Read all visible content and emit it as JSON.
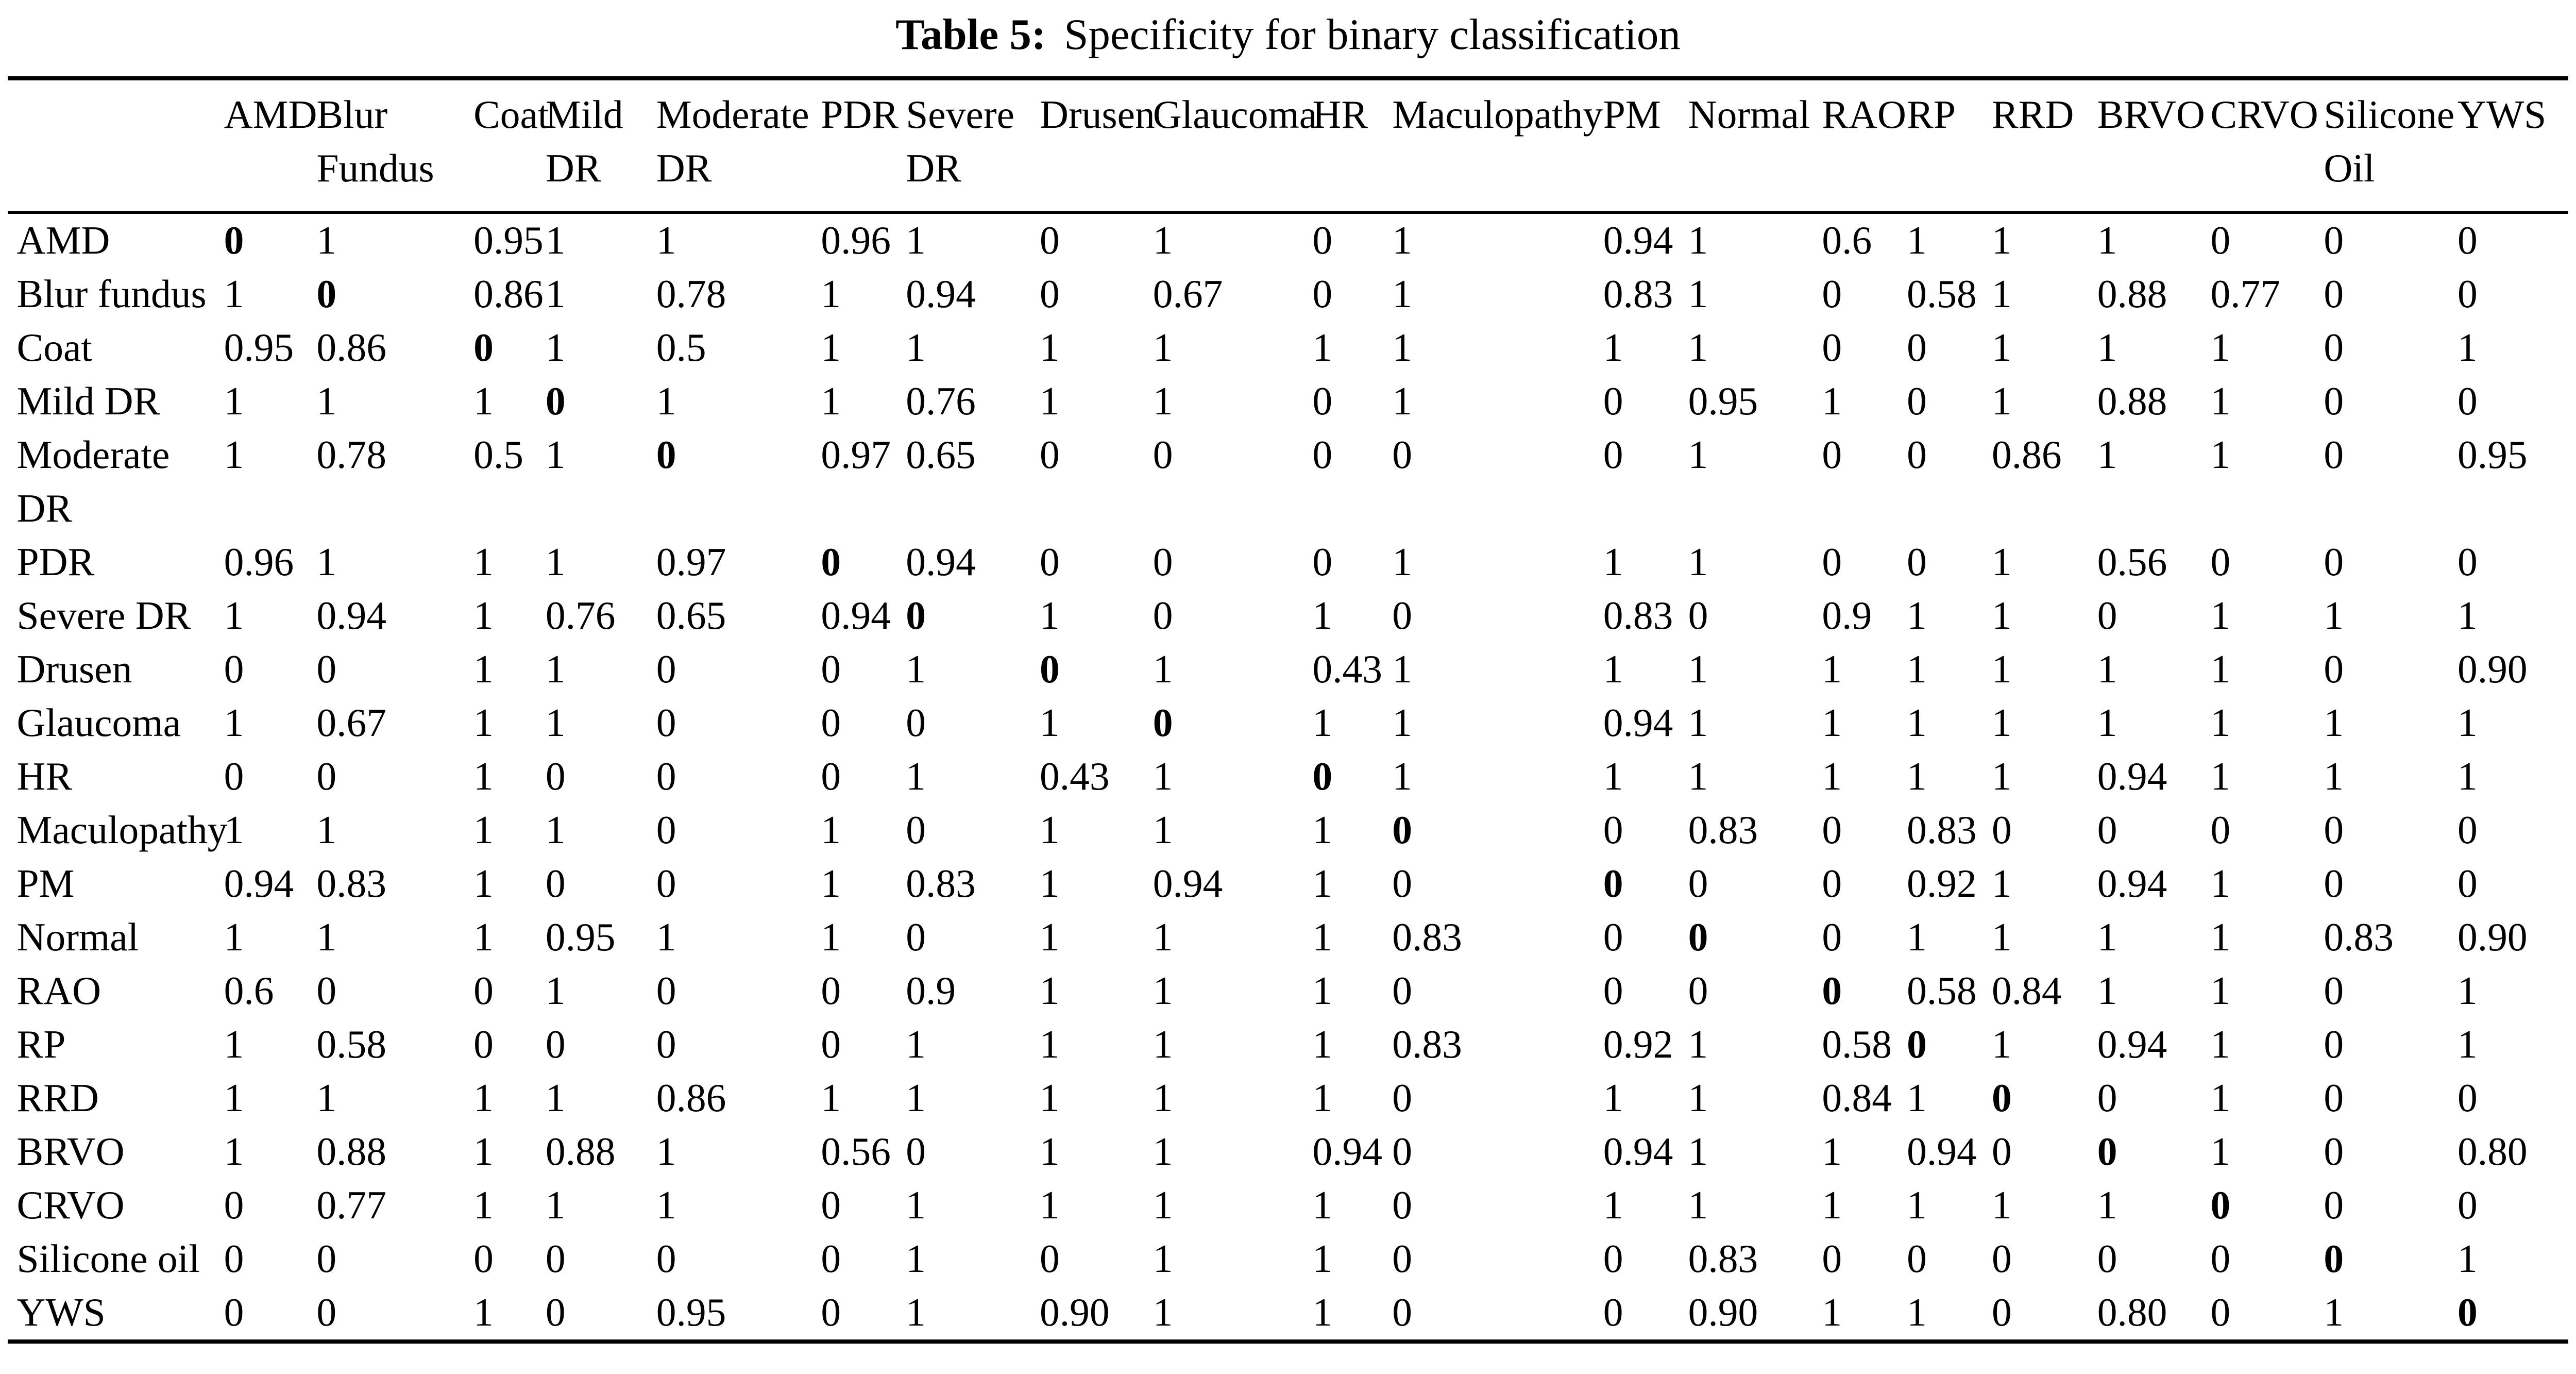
{
  "title": {
    "label": "Table 5:",
    "caption": "Specificity for binary classification"
  },
  "table": {
    "columns": [
      "AMD",
      "Blur Fundus",
      "Coat",
      "Mild DR",
      "Moderate DR",
      "PDR",
      "Severe DR",
      "Drusen",
      "Glaucoma",
      "HR",
      "Maculopathy",
      "PM",
      "Normal",
      "RAO",
      "RP",
      "RRD",
      "BRVO",
      "CRVO",
      "Silicone Oil",
      "YWS"
    ],
    "rows": [
      {
        "label": "AMD",
        "values": [
          "0",
          "1",
          "0.95",
          "1",
          "1",
          "0.96",
          "1",
          "0",
          "1",
          "0",
          "1",
          "0.94",
          "1",
          "0.6",
          "1",
          "1",
          "1",
          "0",
          "0",
          "0"
        ]
      },
      {
        "label": "Blur fundus",
        "values": [
          "1",
          "0",
          "0.86",
          "1",
          "0.78",
          "1",
          "0.94",
          "0",
          "0.67",
          "0",
          "1",
          "0.83",
          "1",
          "0",
          "0.58",
          "1",
          "0.88",
          "0.77",
          "0",
          "0"
        ]
      },
      {
        "label": "Coat",
        "values": [
          "0.95",
          "0.86",
          "0",
          "1",
          "0.5",
          "1",
          "1",
          "1",
          "1",
          "1",
          "1",
          "1",
          "1",
          "0",
          "0",
          "1",
          "1",
          "1",
          "0",
          "1"
        ]
      },
      {
        "label": "Mild DR",
        "values": [
          "1",
          "1",
          "1",
          "0",
          "1",
          "1",
          "0.76",
          "1",
          "1",
          "0",
          "1",
          "0",
          "0.95",
          "1",
          "0",
          "1",
          "0.88",
          "1",
          "0",
          "0"
        ]
      },
      {
        "label": "Moderate DR",
        "values": [
          "1",
          "0.78",
          "0.5",
          "1",
          "0",
          "0.97",
          "0.65",
          "0",
          "0",
          "0",
          "0",
          "0",
          "1",
          "0",
          "0",
          "0.86",
          "1",
          "1",
          "0",
          "0.95"
        ]
      },
      {
        "label": "PDR",
        "values": [
          "0.96",
          "1",
          "1",
          "1",
          "0.97",
          "0",
          "0.94",
          "0",
          "0",
          "0",
          "1",
          "1",
          "1",
          "0",
          "0",
          "1",
          "0.56",
          "0",
          "0",
          "0"
        ]
      },
      {
        "label": "Severe DR",
        "values": [
          "1",
          "0.94",
          "1",
          "0.76",
          "0.65",
          "0.94",
          "0",
          "1",
          "0",
          "1",
          "0",
          "0.83",
          "0",
          "0.9",
          "1",
          "1",
          "0",
          "1",
          "1",
          "1"
        ]
      },
      {
        "label": "Drusen",
        "values": [
          "0",
          "0",
          "1",
          "1",
          "0",
          "0",
          "1",
          "0",
          "1",
          "0.43",
          "1",
          "1",
          "1",
          "1",
          "1",
          "1",
          "1",
          "1",
          "0",
          "0.90"
        ]
      },
      {
        "label": "Glaucoma",
        "values": [
          "1",
          "0.67",
          "1",
          "1",
          "0",
          "0",
          "0",
          "1",
          "0",
          "1",
          "1",
          "0.94",
          "1",
          "1",
          "1",
          "1",
          "1",
          "1",
          "1",
          "1"
        ]
      },
      {
        "label": "HR",
        "values": [
          "0",
          "0",
          "1",
          "0",
          "0",
          "0",
          "1",
          "0.43",
          "1",
          "0",
          "1",
          "1",
          "1",
          "1",
          "1",
          "1",
          "0.94",
          "1",
          "1",
          "1"
        ]
      },
      {
        "label": "Maculopathy",
        "values": [
          "1",
          "1",
          "1",
          "1",
          "0",
          "1",
          "0",
          "1",
          "1",
          "1",
          "0",
          "0",
          "0.83",
          "0",
          "0.83",
          "0",
          "0",
          "0",
          "0",
          "0"
        ]
      },
      {
        "label": "PM",
        "values": [
          "0.94",
          "0.83",
          "1",
          "0",
          "0",
          "1",
          "0.83",
          "1",
          "0.94",
          "1",
          "0",
          "0",
          "0",
          "0",
          "0.92",
          "1",
          "0.94",
          "1",
          "0",
          "0"
        ]
      },
      {
        "label": "Normal",
        "values": [
          "1",
          "1",
          "1",
          "0.95",
          "1",
          "1",
          "0",
          "1",
          "1",
          "1",
          "0.83",
          "0",
          "0",
          "0",
          "1",
          "1",
          "1",
          "1",
          "0.83",
          "0.90"
        ]
      },
      {
        "label": "RAO",
        "values": [
          "0.6",
          "0",
          "0",
          "1",
          "0",
          "0",
          "0.9",
          "1",
          "1",
          "1",
          "0",
          "0",
          "0",
          "0",
          "0.58",
          "0.84",
          "1",
          "1",
          "0",
          "1"
        ]
      },
      {
        "label": "RP",
        "values": [
          "1",
          "0.58",
          "0",
          "0",
          "0",
          "0",
          "1",
          "1",
          "1",
          "1",
          "0.83",
          "0.92",
          "1",
          "0.58",
          "0",
          "1",
          "0.94",
          "1",
          "0",
          "1"
        ]
      },
      {
        "label": "RRD",
        "values": [
          "1",
          "1",
          "1",
          "1",
          "0.86",
          "1",
          "1",
          "1",
          "1",
          "1",
          "0",
          "1",
          "1",
          "0.84",
          "1",
          "0",
          "0",
          "1",
          "0",
          "0"
        ]
      },
      {
        "label": "BRVO",
        "values": [
          "1",
          "0.88",
          "1",
          "0.88",
          "1",
          "0.56",
          "0",
          "1",
          "1",
          "0.94",
          "0",
          "0.94",
          "1",
          "1",
          "0.94",
          "0",
          "0",
          "1",
          "0",
          "0.80"
        ]
      },
      {
        "label": "CRVO",
        "values": [
          "0",
          "0.77",
          "1",
          "1",
          "1",
          "0",
          "1",
          "1",
          "1",
          "1",
          "0",
          "1",
          "1",
          "1",
          "1",
          "1",
          "1",
          "0",
          "0",
          "0"
        ]
      },
      {
        "label": "Silicone oil",
        "values": [
          "0",
          "0",
          "0",
          "0",
          "0",
          "0",
          "1",
          "0",
          "1",
          "1",
          "0",
          "0",
          "0.83",
          "0",
          "0",
          "0",
          "0",
          "0",
          "0",
          "1"
        ]
      },
      {
        "label": "YWS",
        "values": [
          "0",
          "0",
          "1",
          "0",
          "0.95",
          "0",
          "1",
          "0.90",
          "1",
          "1",
          "0",
          "0",
          "0.90",
          "1",
          "1",
          "0",
          "0.80",
          "0",
          "1",
          "0"
        ]
      }
    ]
  }
}
